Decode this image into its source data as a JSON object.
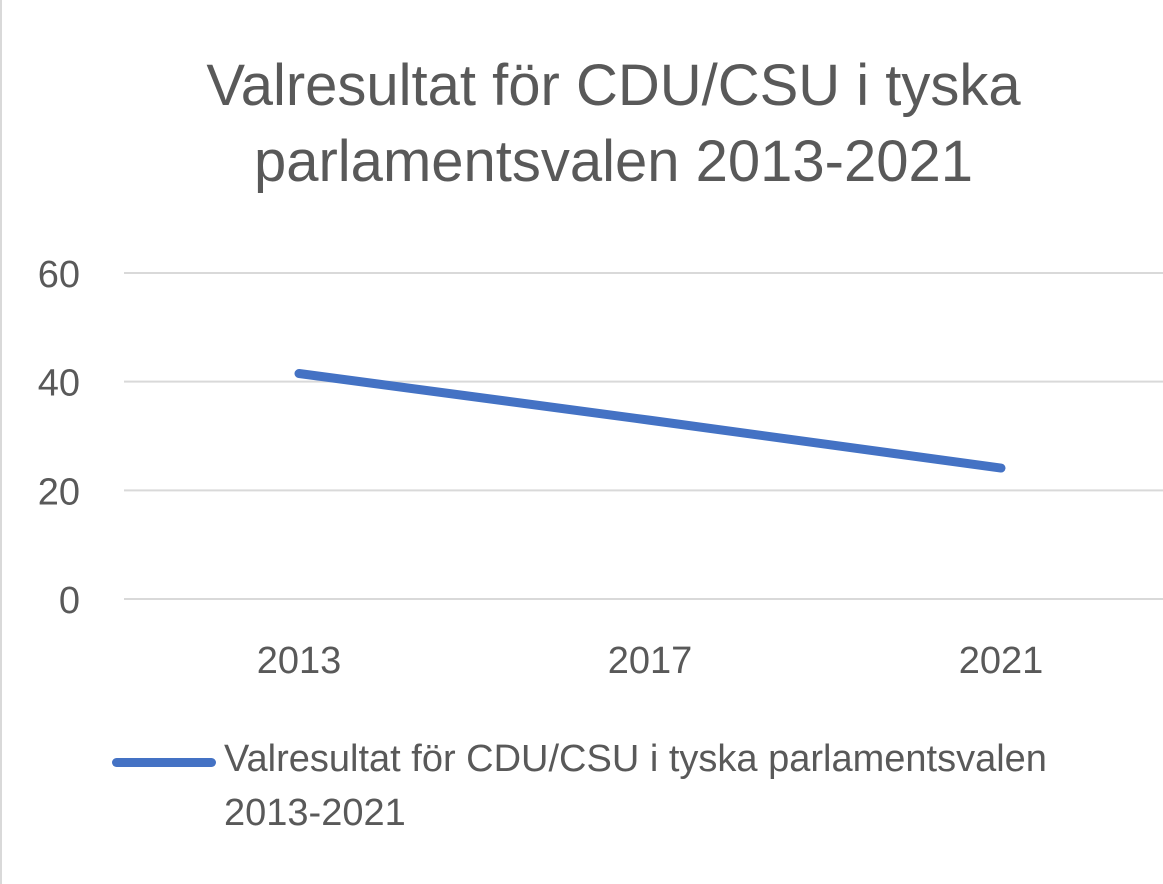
{
  "chart_data": {
    "type": "line",
    "title": "Valresultat för CDU/CSU i tyska parlamentsvalen 2013-2021",
    "categories": [
      "2013",
      "2017",
      "2021"
    ],
    "series": [
      {
        "name": "Valresultat för CDU/CSU i tyska parlamentsvalen 2013-2021",
        "values": [
          41.5,
          32.9,
          24.1
        ],
        "color": "#4472c4"
      }
    ],
    "y_ticks": [
      "0",
      "20",
      "40",
      "60"
    ],
    "ylim": [
      0,
      60
    ],
    "grid": true,
    "legend_position": "bottom",
    "xlabel": "",
    "ylabel": ""
  }
}
